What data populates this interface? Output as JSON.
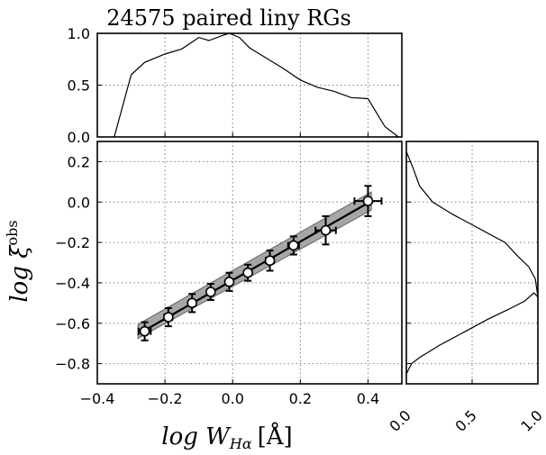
{
  "chart_data": {
    "type": "scatter",
    "title": "24575 paired liny RGs",
    "xlabel_main": "log W",
    "xlabel_sub": "Hα",
    "xlabel_unit": "[Å]",
    "ylabel_main": "log ξ",
    "ylabel_sup": "obs",
    "main": {
      "xlim": [
        -0.4,
        0.5
      ],
      "ylim": [
        -0.9,
        0.3
      ],
      "xticks": [
        -0.4,
        -0.2,
        0.0,
        0.2,
        0.4
      ],
      "xtick_labels": [
        "−0.4",
        "−0.2",
        "0.0",
        "0.2",
        "0.4"
      ],
      "yticks": [
        -0.8,
        -0.6,
        -0.4,
        -0.2,
        0.0,
        0.2
      ],
      "ytick_labels": [
        "−0.8",
        "−0.6",
        "−0.4",
        "−0.2",
        "0.0",
        "0.2"
      ],
      "points": [
        {
          "x": -0.26,
          "y": -0.64,
          "xerr": 0.018,
          "yerr": 0.045
        },
        {
          "x": -0.19,
          "y": -0.57,
          "xerr": 0.012,
          "yerr": 0.045
        },
        {
          "x": -0.12,
          "y": -0.5,
          "xerr": 0.008,
          "yerr": 0.045
        },
        {
          "x": -0.065,
          "y": -0.445,
          "xerr": 0.008,
          "yerr": 0.04
        },
        {
          "x": -0.01,
          "y": -0.395,
          "xerr": 0.008,
          "yerr": 0.045
        },
        {
          "x": 0.045,
          "y": -0.35,
          "xerr": 0.008,
          "yerr": 0.04
        },
        {
          "x": 0.11,
          "y": -0.29,
          "xerr": 0.012,
          "yerr": 0.05
        },
        {
          "x": 0.18,
          "y": -0.215,
          "xerr": 0.016,
          "yerr": 0.045
        },
        {
          "x": 0.275,
          "y": -0.14,
          "xerr": 0.03,
          "yerr": 0.07
        },
        {
          "x": 0.4,
          "y": 0.005,
          "xerr": 0.04,
          "yerr": 0.075
        }
      ],
      "band": {
        "x": [
          -0.28,
          0.41
        ],
        "upper": [
          -0.605,
          0.05
        ],
        "lower": [
          -0.675,
          -0.04
        ]
      },
      "fit": {
        "x": [
          -0.27,
          0.41
        ],
        "y": [
          -0.645,
          0.005
        ]
      }
    },
    "top_hist": {
      "xlim": [
        -0.4,
        0.5
      ],
      "ylim": [
        0.0,
        1.0
      ],
      "yticks": [
        0.0,
        0.5,
        1.0
      ],
      "ytick_labels": [
        "0.0",
        "0.5",
        "1.0"
      ],
      "x": [
        -0.35,
        -0.3,
        -0.26,
        -0.2,
        -0.15,
        -0.1,
        -0.07,
        -0.03,
        -0.01,
        0.02,
        0.05,
        0.1,
        0.15,
        0.2,
        0.25,
        0.3,
        0.35,
        0.4,
        0.45,
        0.49
      ],
      "y": [
        0.0,
        0.6,
        0.72,
        0.8,
        0.85,
        0.96,
        0.93,
        0.98,
        1.0,
        0.96,
        0.86,
        0.76,
        0.66,
        0.55,
        0.48,
        0.44,
        0.38,
        0.37,
        0.1,
        0.0
      ]
    },
    "right_hist": {
      "xlim": [
        0.0,
        1.0
      ],
      "ylim": [
        -0.9,
        0.3
      ],
      "xticks": [
        0.0,
        0.5,
        1.0
      ],
      "xtick_labels": [
        "0.0",
        "0.5",
        "1.0"
      ],
      "x": [
        0.0,
        0.04,
        0.1,
        0.25,
        0.45,
        0.62,
        0.78,
        0.9,
        0.97,
        1.0,
        0.98,
        0.93,
        0.85,
        0.75,
        0.55,
        0.35,
        0.2,
        0.1,
        0.05,
        0.0
      ],
      "y": [
        -0.85,
        -0.8,
        -0.77,
        -0.71,
        -0.64,
        -0.58,
        -0.53,
        -0.49,
        -0.45,
        -0.47,
        -0.38,
        -0.32,
        -0.27,
        -0.2,
        -0.13,
        -0.06,
        0.0,
        0.08,
        0.17,
        0.25
      ]
    }
  }
}
